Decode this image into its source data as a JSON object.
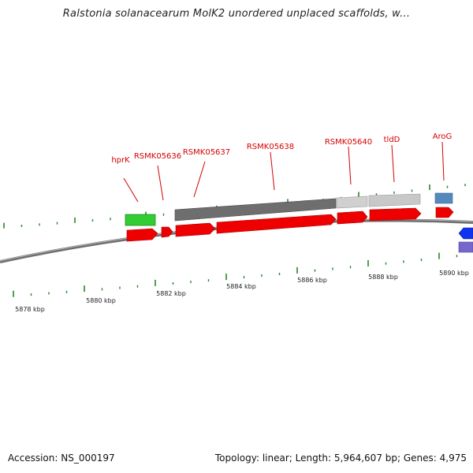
{
  "title": "Ralstonia solanacearum MolK2 unordered unplaced scaffolds, w...",
  "footer": {
    "accession": "Accession: NS_000197",
    "summary": "Topology: linear; Length: 5,964,607 bp; Genes: 4,975"
  },
  "colors": {
    "gene_label": "#d40000",
    "cds_red": "#ee0000",
    "green_feature": "#33cc33",
    "dark_gray": "#6e6e6e",
    "light_gray": "#cfcfcf",
    "steel_blue": "#5588bb",
    "blue": "#1133ee",
    "purple": "#7766cc",
    "backbone": "#888888",
    "tick_green": "#228822"
  },
  "gene_labels": [
    {
      "text": "hprK"
    },
    {
      "text": "RSMK05636"
    },
    {
      "text": "RSMK05637"
    },
    {
      "text": "RSMK05638"
    },
    {
      "text": "RSMK05640"
    },
    {
      "text": "tldD"
    },
    {
      "text": "AroG"
    }
  ],
  "scale_labels": [
    {
      "text": "5878 kbp"
    },
    {
      "text": "5880 kbp"
    },
    {
      "text": "5882 kbp"
    },
    {
      "text": "5884 kbp"
    },
    {
      "text": "5886 kbp"
    },
    {
      "text": "5888 kbp"
    },
    {
      "text": "5890 kbp"
    }
  ]
}
